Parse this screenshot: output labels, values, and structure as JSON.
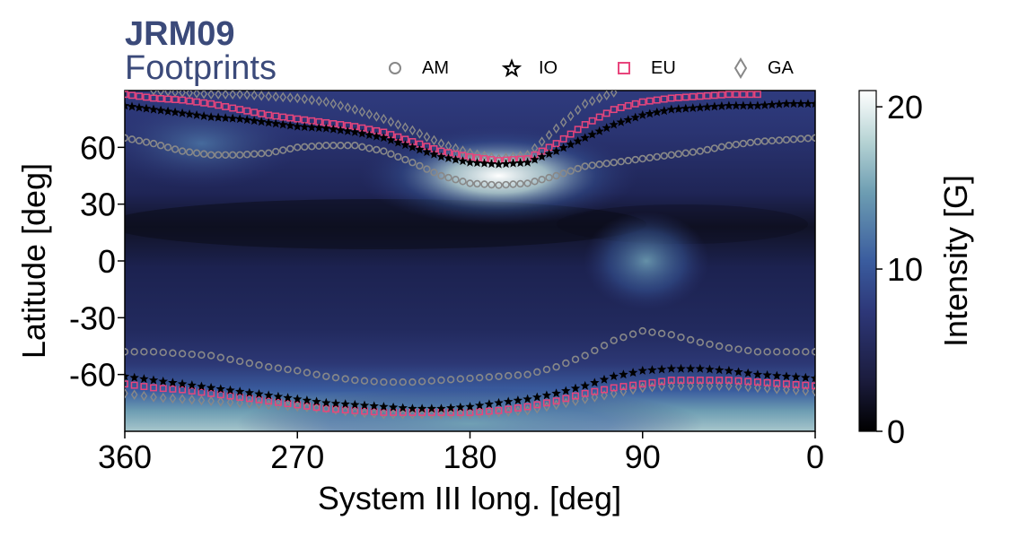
{
  "chart_data": {
    "type": "heatmap",
    "title": "JRM09",
    "subtitle": "Footprints",
    "xlabel": "System III long. [deg]",
    "ylabel": "Latitude [deg]",
    "xlim": [
      360,
      0
    ],
    "ylim": [
      -90,
      90
    ],
    "xticks": [
      360,
      270,
      180,
      90,
      0
    ],
    "yticks": [
      60,
      30,
      0,
      -30,
      -60
    ],
    "colorbar": {
      "label": "Intensity [G]",
      "range": [
        0,
        21
      ],
      "ticks": [
        0,
        10,
        20
      ],
      "colormap": [
        "#000000",
        "#1b1c3d",
        "#2d3778",
        "#3a5c9e",
        "#6d9db2",
        "#b6d3d4",
        "#ffffff"
      ]
    },
    "legend_position": "top",
    "series": [
      {
        "name": "AM",
        "marker": "circle",
        "color": "#888888",
        "north": [
          [
            360,
            65
          ],
          [
            345,
            62
          ],
          [
            330,
            58
          ],
          [
            315,
            56
          ],
          [
            300,
            56
          ],
          [
            285,
            57
          ],
          [
            270,
            60
          ],
          [
            255,
            61
          ],
          [
            240,
            61
          ],
          [
            225,
            58
          ],
          [
            210,
            52
          ],
          [
            195,
            45
          ],
          [
            180,
            41
          ],
          [
            165,
            40
          ],
          [
            150,
            41
          ],
          [
            135,
            45
          ],
          [
            120,
            50
          ],
          [
            105,
            52
          ],
          [
            90,
            54
          ],
          [
            75,
            56
          ],
          [
            60,
            58
          ],
          [
            45,
            61
          ],
          [
            30,
            63
          ],
          [
            15,
            64
          ],
          [
            0,
            65
          ]
        ],
        "south": [
          [
            360,
            -48
          ],
          [
            345,
            -48
          ],
          [
            330,
            -49
          ],
          [
            315,
            -50
          ],
          [
            300,
            -53
          ],
          [
            285,
            -56
          ],
          [
            270,
            -58
          ],
          [
            255,
            -61
          ],
          [
            240,
            -63
          ],
          [
            225,
            -64
          ],
          [
            210,
            -64
          ],
          [
            195,
            -63
          ],
          [
            180,
            -62
          ],
          [
            165,
            -61
          ],
          [
            150,
            -60
          ],
          [
            135,
            -56
          ],
          [
            120,
            -50
          ],
          [
            105,
            -42
          ],
          [
            90,
            -37
          ],
          [
            75,
            -39
          ],
          [
            60,
            -43
          ],
          [
            45,
            -46
          ],
          [
            30,
            -48
          ],
          [
            15,
            -48
          ],
          [
            0,
            -48
          ]
        ]
      },
      {
        "name": "IO",
        "marker": "star",
        "color": "#000000",
        "north": [
          [
            360,
            82
          ],
          [
            345,
            80
          ],
          [
            330,
            78
          ],
          [
            315,
            76
          ],
          [
            300,
            75
          ],
          [
            285,
            73
          ],
          [
            270,
            71
          ],
          [
            255,
            70
          ],
          [
            240,
            68
          ],
          [
            225,
            65
          ],
          [
            210,
            60
          ],
          [
            195,
            55
          ],
          [
            180,
            52
          ],
          [
            165,
            51
          ],
          [
            150,
            52
          ],
          [
            135,
            58
          ],
          [
            120,
            65
          ],
          [
            105,
            72
          ],
          [
            90,
            77
          ],
          [
            75,
            80
          ],
          [
            60,
            81
          ],
          [
            45,
            82
          ],
          [
            30,
            82
          ],
          [
            15,
            83
          ],
          [
            0,
            83
          ]
        ],
        "south": [
          [
            360,
            -61
          ],
          [
            345,
            -63
          ],
          [
            330,
            -65
          ],
          [
            315,
            -67
          ],
          [
            300,
            -69
          ],
          [
            285,
            -71
          ],
          [
            270,
            -73
          ],
          [
            255,
            -75
          ],
          [
            240,
            -76
          ],
          [
            225,
            -77
          ],
          [
            210,
            -78
          ],
          [
            195,
            -78
          ],
          [
            180,
            -77
          ],
          [
            165,
            -75
          ],
          [
            150,
            -73
          ],
          [
            135,
            -70
          ],
          [
            120,
            -66
          ],
          [
            105,
            -61
          ],
          [
            90,
            -58
          ],
          [
            75,
            -57
          ],
          [
            60,
            -57
          ],
          [
            45,
            -58
          ],
          [
            30,
            -60
          ],
          [
            15,
            -61
          ],
          [
            0,
            -62
          ]
        ]
      },
      {
        "name": "EU",
        "marker": "square",
        "color": "#e8457c",
        "north": [
          [
            360,
            88
          ],
          [
            345,
            86
          ],
          [
            330,
            85
          ],
          [
            315,
            83
          ],
          [
            300,
            80
          ],
          [
            285,
            77
          ],
          [
            270,
            75
          ],
          [
            255,
            73
          ],
          [
            240,
            71
          ],
          [
            225,
            68
          ],
          [
            210,
            63
          ],
          [
            195,
            58
          ],
          [
            180,
            55
          ],
          [
            165,
            53
          ],
          [
            150,
            54
          ],
          [
            135,
            62
          ],
          [
            120,
            72
          ],
          [
            105,
            80
          ],
          [
            90,
            84
          ],
          [
            75,
            86
          ],
          [
            60,
            87
          ],
          [
            45,
            88
          ],
          [
            30,
            88
          ]
        ],
        "south": [
          [
            360,
            -65
          ],
          [
            345,
            -67
          ],
          [
            330,
            -68
          ],
          [
            315,
            -70
          ],
          [
            300,
            -72
          ],
          [
            285,
            -74
          ],
          [
            270,
            -76
          ],
          [
            255,
            -78
          ],
          [
            240,
            -79
          ],
          [
            225,
            -80
          ],
          [
            210,
            -80
          ],
          [
            195,
            -80
          ],
          [
            180,
            -80
          ],
          [
            165,
            -79
          ],
          [
            150,
            -77
          ],
          [
            135,
            -74
          ],
          [
            120,
            -70
          ],
          [
            105,
            -67
          ],
          [
            90,
            -65
          ],
          [
            75,
            -63
          ],
          [
            60,
            -63
          ],
          [
            45,
            -63
          ],
          [
            30,
            -64
          ],
          [
            15,
            -65
          ],
          [
            0,
            -66
          ]
        ]
      },
      {
        "name": "GA",
        "marker": "diamond",
        "color": "#888888",
        "north": [
          [
            345,
            90
          ],
          [
            330,
            89
          ],
          [
            315,
            88
          ],
          [
            300,
            88
          ],
          [
            285,
            87
          ],
          [
            270,
            86
          ],
          [
            255,
            84
          ],
          [
            240,
            80
          ],
          [
            225,
            75
          ],
          [
            210,
            69
          ],
          [
            195,
            62
          ],
          [
            180,
            57
          ],
          [
            165,
            54
          ],
          [
            150,
            56
          ],
          [
            135,
            70
          ],
          [
            120,
            83
          ],
          [
            105,
            89
          ]
        ],
        "south": [
          [
            360,
            -70
          ],
          [
            345,
            -72
          ],
          [
            330,
            -73
          ],
          [
            315,
            -74
          ],
          [
            300,
            -75
          ],
          [
            285,
            -76
          ],
          [
            270,
            -77
          ],
          [
            255,
            -78
          ],
          [
            240,
            -80
          ],
          [
            225,
            -81
          ],
          [
            210,
            -81
          ],
          [
            195,
            -81
          ],
          [
            180,
            -81
          ],
          [
            165,
            -80
          ],
          [
            150,
            -79
          ],
          [
            135,
            -76
          ],
          [
            120,
            -73
          ],
          [
            105,
            -70
          ],
          [
            90,
            -67
          ],
          [
            75,
            -66
          ],
          [
            60,
            -66
          ],
          [
            45,
            -66
          ],
          [
            30,
            -67
          ],
          [
            15,
            -68
          ],
          [
            0,
            -69
          ]
        ]
      }
    ],
    "hotspots": [
      {
        "lon": 165,
        "lat": 45,
        "value": 21
      },
      {
        "lon": 88,
        "lat": 0,
        "value": 12
      },
      {
        "lon": 320,
        "lat": 62,
        "value": 11
      },
      {
        "lon": 180,
        "lat": -86,
        "value": 15
      }
    ]
  }
}
